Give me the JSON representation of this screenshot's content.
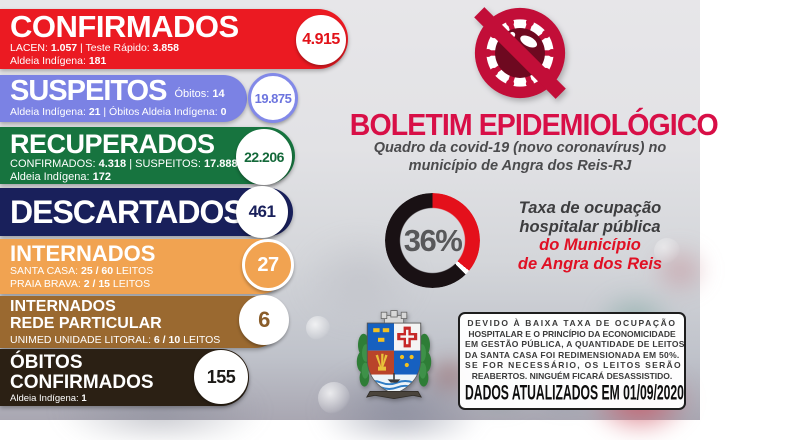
{
  "palette": {
    "accent_crimson": "#D80F47",
    "icon_crimson": "#C20E38",
    "icon_virus_body": "#6E0920"
  },
  "header": {
    "title": "BOLETIM EPIDEMIOLÓGICO",
    "subtitle_lines": [
      "Quadro da covid-19 (novo coronavírus) no",
      "município de Angra dos Reis-RJ"
    ]
  },
  "stats": [
    {
      "title": "CONFIRMADOS",
      "badge": "4.915",
      "color": "#EB1A22",
      "badge_bg": "#FFFFFF",
      "badge_fg": "#E21219",
      "badge_border": "#FFFFFF",
      "lines": [
        [
          {
            "t": "LACEN: "
          },
          {
            "t": "1.057",
            "b": true
          },
          {
            "t": "  |  Teste Rápido: "
          },
          {
            "t": "3.858",
            "b": true
          }
        ],
        [
          {
            "t": "Aldeia Indígena: "
          },
          {
            "t": "181",
            "b": true
          }
        ]
      ]
    },
    {
      "title": "SUSPEITOS",
      "badge": "19.875",
      "color": "#7B82E4",
      "badge_bg": "#FFFFFF",
      "badge_fg": "#6C74DE",
      "badge_border": "#8289E8",
      "side": [
        {
          "t": "Óbitos: "
        },
        {
          "t": "14",
          "b": true
        }
      ],
      "lines": [
        [
          {
            "t": "Aldeia Indígena: "
          },
          {
            "t": "21",
            "b": true
          },
          {
            "t": " | Óbitos Aldeia Indígena: "
          },
          {
            "t": "0",
            "b": true
          }
        ]
      ]
    },
    {
      "title": "RECUPERADOS",
      "badge": "22.206",
      "color": "#17743F",
      "badge_bg": "#FFFFFF",
      "badge_fg": "#14693A",
      "badge_border": "#FFFFFF",
      "lines": [
        [
          {
            "t": "CONFIRMADOS: "
          },
          {
            "t": "4.318",
            "b": true
          },
          {
            "t": " | SUSPEITOS: "
          },
          {
            "t": "17.888",
            "b": true
          }
        ],
        [
          {
            "t": "Aldeia Indígena: "
          },
          {
            "t": "172",
            "b": true
          }
        ]
      ]
    },
    {
      "title": "DESCARTADOS",
      "badge": "461",
      "color": "#19205B",
      "badge_bg": "#FFFFFF",
      "badge_fg": "#19205B",
      "badge_border": "#FFFFFF",
      "lines": []
    },
    {
      "title": "INTERNADOS",
      "badge": "27",
      "color": "#F1A351",
      "badge_bg": "#F1A351",
      "badge_fg": "#FFFFFF",
      "badge_border": "#FFFFFF",
      "lines": [
        [
          {
            "t": "SANTA CASA: "
          },
          {
            "t": "25 / 60",
            "b": true
          },
          {
            "t": " LEITOS"
          }
        ],
        [
          {
            "t": "PRAIA BRAVA: "
          },
          {
            "t": "2 / 15",
            "b": true
          },
          {
            "t": " LEITOS"
          }
        ]
      ]
    },
    {
      "title": "INTERNADOS\nREDE PARTICULAR",
      "badge": "6",
      "color": "#9A6930",
      "badge_bg": "#FFFFFF",
      "badge_fg": "#8A5D2A",
      "badge_border": "#FFFFFF",
      "lines": [
        [
          {
            "t": "UNIMED UNIDADE LITORAL: "
          },
          {
            "t": "6 / 10",
            "b": true
          },
          {
            "t": " LEITOS"
          }
        ]
      ]
    },
    {
      "title": "ÓBITOS\nCONFIRMADOS",
      "badge": "155",
      "color": "#2B2014",
      "badge_bg": "#FFFFFF",
      "badge_fg": "#1C1A17",
      "badge_border": "#FFFFFF",
      "lines": [
        [
          {
            "t": "Aldeia Indígena: "
          },
          {
            "t": "1",
            "b": true
          }
        ]
      ]
    }
  ],
  "gauge": {
    "percent": 36,
    "label": "36%",
    "filled_color": "#E4101B",
    "empty_color": "#191114",
    "caption_gray_lines": [
      "Taxa de ocupação",
      "hospitalar pública"
    ],
    "caption_red_lines": [
      "do Município",
      "de Angra dos Reis"
    ],
    "caption_red_color": "#E01024"
  },
  "notice": {
    "lines": [
      "DEVIDO À BAIXA TAXA DE OCUPAÇÃO",
      "HOSPITALAR E O PRINCÍPIO DA ECONOMICIDADE",
      "EM GESTÃO PÚBLICA, A QUANTIDADE DE LEITOS",
      "DA SANTA CASA FOI REDIMENSIONADA EM 50%.",
      "SE FOR NECESSÁRIO, OS LEITOS SERÃO",
      "REABERTOS. NINGUÉM FICARÁ DESASSISTIDO.",
      "DADOS ATUALIZADOS EM 01/09/2020"
    ],
    "updated": "DADOS ATUALIZADOS EM 01/09/2020"
  }
}
